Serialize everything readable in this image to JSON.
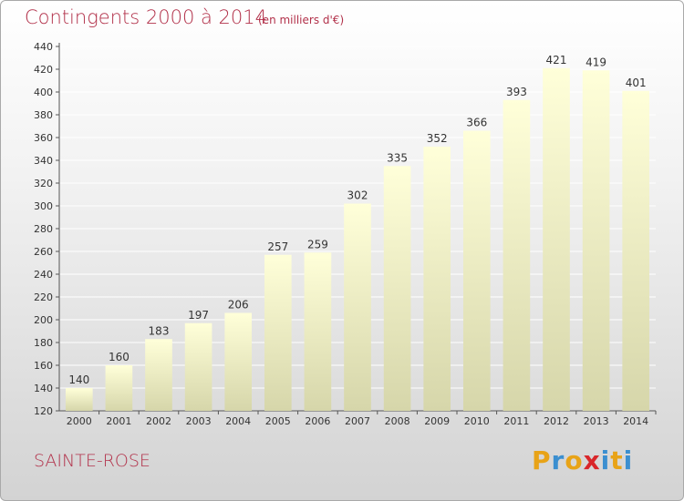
{
  "header": {
    "title": "Contingents 2000 à 2014",
    "subtitle": "(en milliers d'€)"
  },
  "footer": {
    "commune": "SAINTE-ROSE",
    "brand_letters": [
      "P",
      "r",
      "o",
      "x",
      "i",
      "t",
      "i"
    ],
    "brand_colors": [
      "#e8a317",
      "#3b8fd0",
      "#e8a317",
      "#d9262a",
      "#3b8fd0",
      "#e8a317",
      "#3b8fd0"
    ]
  },
  "colors": {
    "accent": "#b2314a",
    "bar_top": "#ffffd9",
    "bar_bottom": "#d6d6aa",
    "grid": "#ffffff"
  },
  "chart_data": {
    "type": "bar",
    "title": "Contingents 2000 à 2014",
    "subtitle": "(en milliers d'€)",
    "xlabel": "",
    "ylabel": "",
    "categories": [
      "2000",
      "2001",
      "2002",
      "2003",
      "2004",
      "2005",
      "2006",
      "2007",
      "2008",
      "2009",
      "2010",
      "2011",
      "2012",
      "2013",
      "2014"
    ],
    "values": [
      140,
      160,
      183,
      197,
      206,
      257,
      259,
      302,
      335,
      352,
      366,
      393,
      421,
      419,
      401
    ],
    "ylim": [
      120,
      440
    ],
    "yticks": [
      120,
      140,
      160,
      180,
      200,
      220,
      240,
      260,
      280,
      300,
      320,
      340,
      360,
      380,
      400,
      420,
      440
    ],
    "grid": true,
    "legend": "none"
  }
}
